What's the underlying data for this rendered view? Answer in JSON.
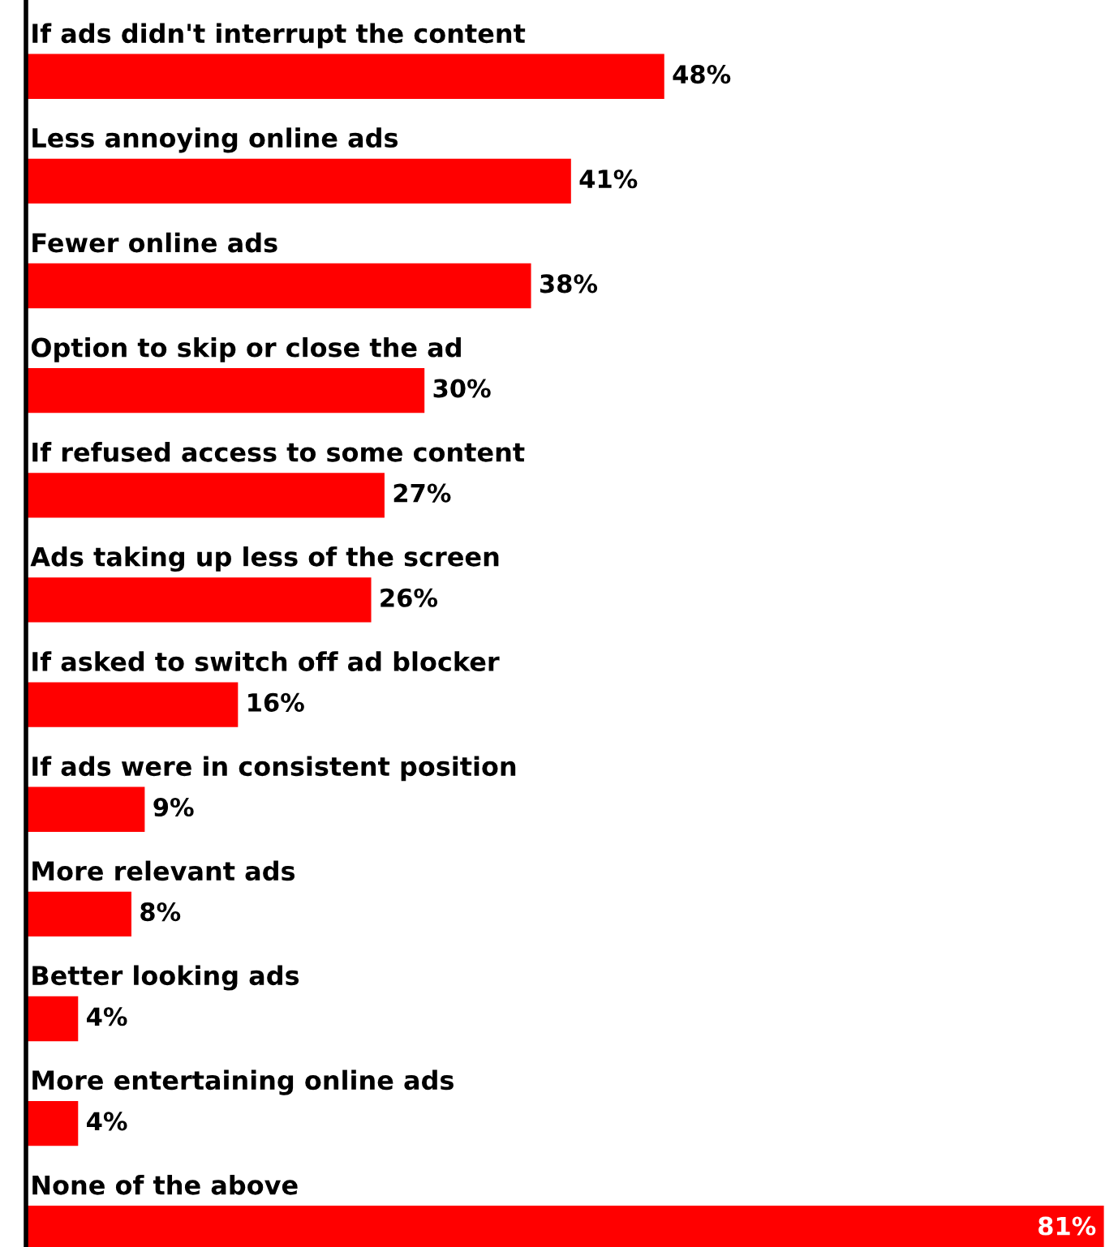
{
  "chart_data": {
    "type": "bar",
    "orientation": "horizontal",
    "categories": [
      "If ads didn't interrupt the content",
      "Less annoying online ads",
      "Fewer online ads",
      "Option to skip or close the ad",
      "If refused access to some content",
      "Ads taking up less of the screen",
      "If asked to switch off ad blocker",
      "If ads were in consistent position",
      "More relevant ads",
      "Better looking ads",
      "More entertaining online ads",
      "None of the above"
    ],
    "values": [
      48,
      41,
      38,
      30,
      27,
      26,
      16,
      9,
      8,
      4,
      4,
      81
    ],
    "value_labels": [
      "48%",
      "41%",
      "38%",
      "30%",
      "27%",
      "26%",
      "16%",
      "9%",
      "8%",
      "4%",
      "4%",
      "81%"
    ],
    "color": "#ff0000",
    "xlim": [
      0,
      81
    ]
  }
}
